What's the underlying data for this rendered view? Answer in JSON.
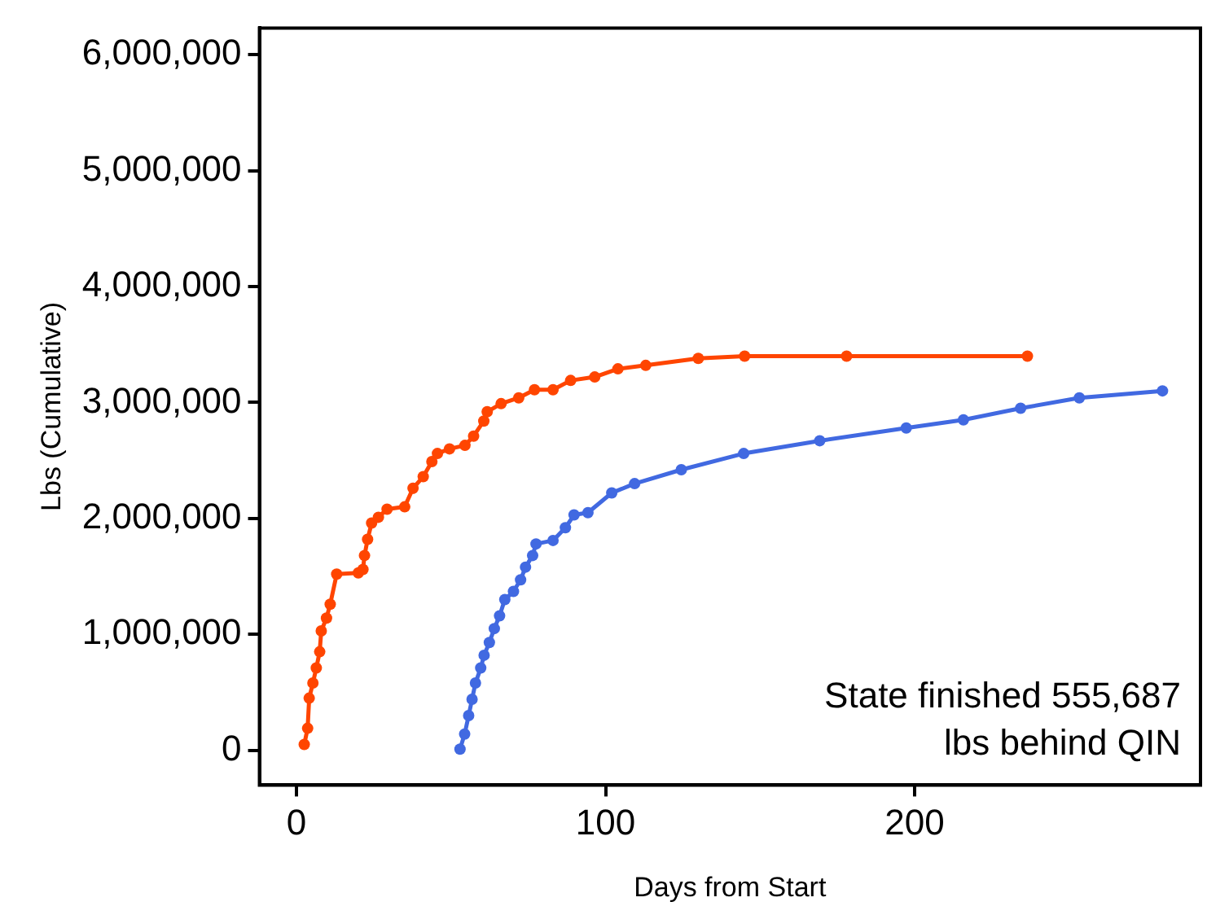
{
  "chart_data": {
    "type": "line",
    "xlabel": "Days from Start",
    "ylabel": "Lbs (Cumulative)",
    "xlim": [
      -12,
      292.5
    ],
    "xticks": [
      0,
      100,
      200
    ],
    "ylim": [
      -300000,
      6230000
    ],
    "yticks": [
      0,
      {
        "value": 1000000,
        "label": "1,000,000"
      },
      {
        "value": 2000000,
        "label": "2,000,000"
      },
      {
        "value": 3000000,
        "label": "3,000,000"
      },
      {
        "value": 4000000,
        "label": "4,000,000"
      },
      {
        "value": 5000000,
        "label": "5,000,000"
      },
      {
        "value": 6000000,
        "label": "6,000,000"
      }
    ],
    "grid": false,
    "legend": false,
    "marker": "circle",
    "line_style": "solid",
    "annotations": [
      "State finished 555,687\nlbs behind QIN"
    ],
    "series": [
      {
        "color": "#ff4500",
        "x": [
          2.5,
          3.6,
          4.1,
          5.3,
          6.4,
          7.5,
          8,
          9.7,
          10.9,
          13,
          20,
          21.5,
          22,
          23,
          24.3,
          26.5,
          29.3,
          35,
          37.7,
          41,
          43.8,
          45.6,
          49.5,
          54.5,
          57.3,
          60.6,
          61.7,
          66.2,
          71.9,
          77,
          83,
          88.7,
          96.5,
          104,
          113,
          130,
          145,
          178,
          236.5
        ],
        "values": [
          50000,
          190000,
          450000,
          580000,
          710000,
          850000,
          1030000,
          1140000,
          1260000,
          1520000,
          1530000,
          1560000,
          1680000,
          1820000,
          1960000,
          2010000,
          2080000,
          2100000,
          2260000,
          2360000,
          2490000,
          2560000,
          2600000,
          2630000,
          2710000,
          2840000,
          2920000,
          2990000,
          3040000,
          3110000,
          3110000,
          3190000,
          3220000,
          3290000,
          3320000,
          3380000,
          3400000,
          3400000,
          3400000
        ]
      },
      {
        "color": "#4169e1",
        "x": [
          52.9,
          54.4,
          55.7,
          56.8,
          57.9,
          59.6,
          60.7,
          62.4,
          64,
          65.7,
          67.4,
          70.2,
          72.5,
          74.1,
          76.4,
          77.5,
          83,
          87,
          89.8,
          94.3,
          102,
          109.4,
          124.5,
          144.7,
          169.3,
          197.3,
          215.8,
          234.3,
          253.3,
          280.2
        ],
        "values": [
          10000,
          140000,
          300000,
          440000,
          580000,
          710000,
          820000,
          930000,
          1050000,
          1160000,
          1300000,
          1370000,
          1470000,
          1580000,
          1680000,
          1780000,
          1810000,
          1920000,
          2030000,
          2050000,
          2220000,
          2300000,
          2420000,
          2560000,
          2670000,
          2780000,
          2850000,
          2950000,
          3040000,
          3100000
        ]
      }
    ]
  }
}
